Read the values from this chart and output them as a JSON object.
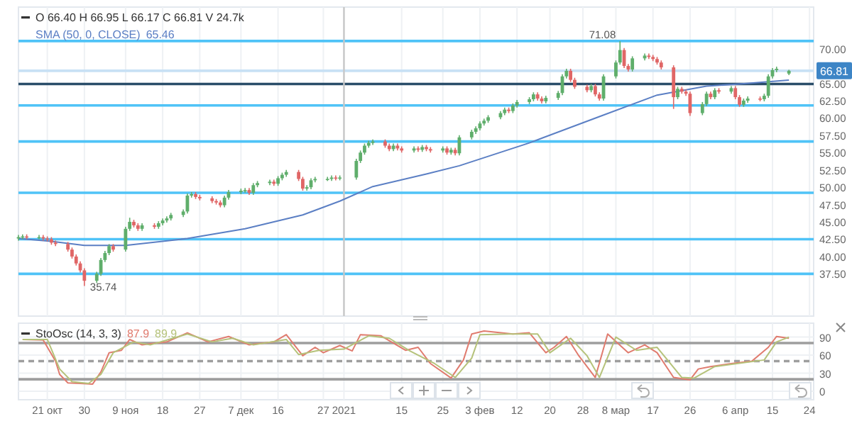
{
  "chart_data": [
    {
      "type": "candlestick",
      "title": "O 66.40 H 66.95 L 66.17 C 66.81 V 24.7k",
      "colors": [
        "#5fae6b",
        "#5fae6b",
        "#e06666",
        "#5fae6b",
        "#e06666",
        "#e06666",
        "#e06666",
        "#e06666",
        "#e06666",
        "#e06666",
        "#e06666",
        "#e06666",
        "#e06666",
        "#5fae6b",
        "#5fae6b",
        "#5fae6b",
        "#5fae6b",
        "#e06666",
        "#5fae6b",
        "#5fae6b",
        "#e06666",
        "#e06666",
        "#5fae6b",
        "#e06666",
        "#5fae6b",
        "#5fae6b",
        "#5fae6b",
        "#5fae6b",
        "#5fae6b",
        "#5fae6b",
        "#5fae6b",
        "#e06666",
        "#e06666",
        "#e06666",
        "#e06666",
        "#e06666",
        "#5fae6b",
        "#5fae6b",
        "#5fae6b",
        "#5fae6b",
        "#e06666",
        "#5fae6b",
        "#5fae6b",
        "#5fae6b",
        "#e06666",
        "#5fae6b",
        "#5fae6b",
        "#5fae6b",
        "#e06666",
        "#e06666",
        "#5fae6b",
        "#5fae6b",
        "#5fae6b",
        "#5fae6b",
        "#5fae6b",
        "#e06666",
        "#5fae6b",
        "#5fae6b",
        "#5fae6b",
        "#5fae6b",
        "#5fae6b",
        "#5fae6b",
        "#e06666",
        "#e06666",
        "#5fae6b",
        "#e06666",
        "#e06666",
        "#5fae6b",
        "#e06666",
        "#5fae6b",
        "#e06666",
        "#e06666",
        "#5fae6b",
        "#e06666",
        "#5fae6b",
        "#e06666",
        "#5fae6b",
        "#5fae6b",
        "#5fae6b",
        "#5fae6b",
        "#5fae6b",
        "#5fae6b",
        "#5fae6b",
        "#5fae6b",
        "#e06666",
        "#5fae6b",
        "#5fae6b",
        "#5fae6b",
        "#5fae6b",
        "#e06666",
        "#e06666",
        "#5fae6b",
        "#5fae6b",
        "#5fae6b",
        "#5fae6b",
        "#e06666",
        "#e06666",
        "#e06666",
        "#5fae6b",
        "#e06666",
        "#e06666",
        "#5fae6b",
        "#5fae6b",
        "#5fae6b",
        "#e06666",
        "#e06666",
        "#5fae6b",
        "#5fae6b",
        "#e06666",
        "#e06666",
        "#e06666",
        "#e06666",
        "#e06666",
        "#5fae6b",
        "#e06666",
        "#e06666",
        "#e06666",
        "#5fae6b",
        "#5fae6b",
        "#e06666",
        "#5fae6b",
        "#e06666",
        "#5fae6b",
        "#e06666",
        "#e06666",
        "#5fae6b",
        "#5fae6b",
        "#e06666",
        "#5fae6b",
        "#5fae6b",
        "#5fae6b",
        "#5fae6b",
        "#5fae6b"
      ],
      "x": [
        "2020-10-14",
        "2020-10-15",
        "2020-10-16",
        "2020-10-19",
        "2020-10-20",
        "2020-10-21",
        "2020-10-22",
        "2020-10-23",
        "2020-10-26",
        "2020-10-27",
        "2020-10-28",
        "2020-10-29",
        "2020-10-30",
        "2020-11-02",
        "2020-11-03",
        "2020-11-04",
        "2020-11-05",
        "2020-11-06",
        "2020-11-09",
        "2020-11-10",
        "2020-11-11",
        "2020-11-12",
        "2020-11-13",
        "2020-11-16",
        "2020-11-17",
        "2020-11-18",
        "2020-11-19",
        "2020-11-20",
        "2020-11-23",
        "2020-11-24",
        "2020-11-25",
        "2020-11-26",
        "2020-11-27",
        "2020-11-30",
        "2020-12-01",
        "2020-12-02",
        "2020-12-03",
        "2020-12-04",
        "2020-12-07",
        "2020-12-08",
        "2020-12-09",
        "2020-12-10",
        "2020-12-11",
        "2020-12-14",
        "2020-12-15",
        "2020-12-16",
        "2020-12-17",
        "2020-12-18",
        "2020-12-21",
        "2020-12-22",
        "2020-12-23",
        "2020-12-24",
        "2020-12-25",
        "2020-12-28",
        "2020-12-29",
        "2020-12-30",
        "2020-12-31",
        "2021-01-04",
        "2021-01-05",
        "2021-01-06",
        "2021-01-07",
        "2021-01-08",
        "2021-01-11",
        "2021-01-12",
        "2021-01-13",
        "2021-01-14",
        "2021-01-15",
        "2021-01-18",
        "2021-01-19",
        "2021-01-20",
        "2021-01-21",
        "2021-01-22",
        "2021-01-25",
        "2021-01-26",
        "2021-01-27",
        "2021-01-28",
        "2021-01-29",
        "2021-02-01",
        "2021-02-02",
        "2021-02-03",
        "2021-02-04",
        "2021-02-05",
        "2021-02-08",
        "2021-02-09",
        "2021-02-10",
        "2021-02-11",
        "2021-02-12",
        "2021-02-15",
        "2021-02-16",
        "2021-02-17",
        "2021-02-18",
        "2021-02-19",
        "2021-02-22",
        "2021-02-23",
        "2021-02-24",
        "2021-02-25",
        "2021-02-26",
        "2021-03-01",
        "2021-03-02",
        "2021-03-03",
        "2021-03-04",
        "2021-03-05",
        "2021-03-08",
        "2021-03-09",
        "2021-03-10",
        "2021-03-11",
        "2021-03-12",
        "2021-03-15",
        "2021-03-16",
        "2021-03-17",
        "2021-03-18",
        "2021-03-19",
        "2021-03-22",
        "2021-03-23",
        "2021-03-24",
        "2021-03-25",
        "2021-03-26",
        "2021-03-29",
        "2021-03-30",
        "2021-03-31",
        "2021-04-01",
        "2021-04-02",
        "2021-04-05",
        "2021-04-06",
        "2021-04-07",
        "2021-04-08",
        "2021-04-09",
        "2021-04-12",
        "2021-04-13",
        "2021-04-14",
        "2021-04-15",
        "2021-04-16",
        "2021-04-19"
      ],
      "ohlc": [
        [
          42.6,
          43.1,
          42.3,
          42.8
        ],
        [
          42.8,
          43.2,
          42.5,
          42.9
        ],
        [
          42.9,
          43.2,
          42.5,
          42.8
        ],
        [
          42.8,
          43.1,
          42.5,
          42.8
        ],
        [
          42.8,
          43.1,
          42.3,
          42.6
        ],
        [
          42.6,
          42.9,
          42.2,
          42.5
        ],
        [
          42.5,
          42.8,
          41.7,
          42.0
        ],
        [
          42.0,
          42.3,
          41.5,
          41.8
        ],
        [
          41.8,
          42.1,
          40.7,
          41.0
        ],
        [
          41.0,
          41.3,
          39.7,
          40.0
        ],
        [
          40.0,
          40.3,
          38.7,
          39.0
        ],
        [
          39.0,
          39.3,
          37.7,
          38.0
        ],
        [
          38.0,
          38.3,
          35.74,
          36.5
        ],
        [
          36.5,
          37.8,
          36.2,
          37.5
        ],
        [
          37.5,
          39.8,
          37.2,
          39.5
        ],
        [
          39.5,
          40.8,
          39.2,
          40.5
        ],
        [
          40.5,
          41.8,
          40.2,
          41.5
        ],
        [
          41.5,
          41.8,
          40.7,
          41.0
        ],
        [
          41.0,
          44.3,
          40.7,
          44.0
        ],
        [
          44.0,
          45.6,
          43.7,
          45.0
        ],
        [
          45.0,
          45.3,
          44.2,
          44.5
        ],
        [
          44.5,
          44.8,
          43.7,
          44.0
        ],
        [
          44.0,
          44.8,
          43.7,
          44.5
        ],
        [
          44.5,
          44.8,
          44.0,
          44.3
        ],
        [
          44.3,
          45.1,
          44.0,
          44.8
        ],
        [
          44.8,
          45.5,
          44.5,
          45.2
        ],
        [
          45.2,
          45.8,
          44.9,
          45.5
        ],
        [
          45.5,
          46.3,
          45.2,
          46.0
        ],
        [
          46.0,
          46.8,
          45.7,
          46.5
        ],
        [
          46.5,
          49.1,
          46.2,
          48.8
        ],
        [
          48.8,
          49.3,
          48.5,
          49.0
        ],
        [
          49.0,
          49.3,
          48.3,
          48.6
        ],
        [
          48.6,
          48.9,
          48.1,
          48.4
        ],
        [
          48.4,
          48.7,
          47.7,
          48.0
        ],
        [
          48.0,
          48.3,
          47.5,
          47.8
        ],
        [
          47.8,
          48.1,
          47.1,
          47.4
        ],
        [
          47.4,
          48.8,
          47.1,
          48.5
        ],
        [
          48.5,
          49.6,
          48.2,
          49.3
        ],
        [
          49.3,
          49.8,
          49.0,
          49.5
        ],
        [
          49.5,
          49.9,
          49.2,
          49.6
        ],
        [
          49.6,
          49.9,
          48.9,
          49.2
        ],
        [
          49.2,
          50.6,
          48.9,
          50.3
        ],
        [
          50.3,
          50.9,
          50.0,
          50.6
        ],
        [
          50.6,
          51.1,
          50.3,
          50.8
        ],
        [
          50.8,
          51.1,
          50.2,
          50.5
        ],
        [
          50.5,
          51.6,
          50.2,
          51.3
        ],
        [
          51.3,
          52.1,
          51.0,
          51.8
        ],
        [
          51.8,
          52.5,
          51.5,
          52.2
        ],
        [
          52.2,
          52.5,
          50.9,
          51.2
        ],
        [
          51.2,
          51.5,
          49.5,
          49.8
        ],
        [
          49.8,
          50.3,
          49.5,
          50.0
        ],
        [
          50.0,
          51.3,
          49.7,
          51.0
        ],
        [
          51.0,
          51.5,
          50.7,
          51.2
        ],
        [
          51.2,
          51.5,
          50.9,
          51.2
        ],
        [
          51.2,
          51.7,
          50.9,
          51.4
        ],
        [
          51.4,
          51.7,
          51.0,
          51.3
        ],
        [
          51.3,
          51.7,
          51.0,
          51.4
        ],
        [
          51.4,
          54.1,
          51.1,
          53.8
        ],
        [
          53.8,
          55.3,
          53.5,
          55.0
        ],
        [
          55.0,
          56.3,
          54.7,
          56.0
        ],
        [
          56.0,
          56.7,
          55.7,
          56.4
        ],
        [
          56.4,
          56.9,
          56.1,
          56.6
        ],
        [
          56.6,
          56.9,
          55.7,
          56.0
        ],
        [
          56.0,
          56.3,
          55.2,
          55.5
        ],
        [
          55.5,
          56.3,
          55.2,
          56.0
        ],
        [
          56.0,
          56.3,
          55.3,
          55.6
        ],
        [
          55.6,
          55.9,
          55.0,
          55.3
        ],
        [
          55.3,
          55.9,
          55.0,
          55.6
        ],
        [
          55.6,
          55.9,
          55.1,
          55.4
        ],
        [
          55.4,
          56.1,
          55.1,
          55.8
        ],
        [
          55.8,
          56.1,
          55.2,
          55.5
        ],
        [
          55.5,
          55.8,
          55.0,
          55.3
        ],
        [
          55.3,
          55.9,
          55.0,
          55.6
        ],
        [
          55.6,
          55.9,
          54.7,
          55.0
        ],
        [
          55.0,
          55.7,
          54.7,
          55.4
        ],
        [
          55.4,
          55.7,
          54.6,
          54.9
        ],
        [
          54.9,
          57.5,
          54.6,
          57.2
        ],
        [
          57.2,
          58.3,
          56.9,
          58.0
        ],
        [
          58.0,
          58.8,
          57.7,
          58.5
        ],
        [
          58.5,
          59.5,
          58.2,
          59.2
        ],
        [
          59.2,
          59.9,
          58.9,
          59.6
        ],
        [
          59.6,
          60.4,
          59.3,
          60.1
        ],
        [
          60.1,
          61.0,
          59.8,
          60.7
        ],
        [
          60.7,
          61.5,
          60.4,
          61.2
        ],
        [
          61.2,
          61.5,
          60.7,
          61.0
        ],
        [
          61.0,
          62.1,
          60.7,
          61.8
        ],
        [
          61.8,
          62.6,
          61.5,
          62.3
        ],
        [
          62.3,
          63.0,
          62.0,
          62.7
        ],
        [
          62.7,
          63.7,
          62.4,
          63.4
        ],
        [
          63.4,
          63.7,
          62.5,
          62.8
        ],
        [
          62.8,
          63.1,
          62.1,
          62.4
        ],
        [
          62.4,
          63.2,
          62.1,
          62.9
        ],
        [
          62.9,
          63.9,
          62.6,
          63.6
        ],
        [
          63.6,
          66.3,
          63.3,
          66.0
        ],
        [
          66.0,
          67.1,
          65.7,
          66.8
        ],
        [
          66.8,
          67.1,
          65.2,
          65.5
        ],
        [
          65.5,
          65.8,
          64.2,
          64.5
        ],
        [
          64.5,
          64.8,
          63.7,
          64.0
        ],
        [
          64.0,
          64.9,
          63.7,
          64.6
        ],
        [
          64.6,
          64.9,
          63.1,
          63.4
        ],
        [
          63.4,
          63.7,
          62.5,
          62.8
        ],
        [
          62.8,
          66.3,
          62.5,
          66.0
        ],
        [
          66.0,
          68.3,
          65.7,
          68.0
        ],
        [
          68.0,
          71.08,
          67.7,
          69.8
        ],
        [
          69.8,
          70.1,
          67.2,
          67.5
        ],
        [
          67.5,
          67.8,
          66.7,
          67.0
        ],
        [
          67.0,
          68.9,
          66.7,
          68.6
        ],
        [
          68.6,
          69.3,
          68.3,
          69.0
        ],
        [
          69.0,
          69.3,
          68.5,
          68.8
        ],
        [
          68.8,
          69.1,
          68.2,
          68.5
        ],
        [
          68.5,
          68.8,
          67.7,
          68.0
        ],
        [
          68.0,
          68.3,
          67.0,
          67.3
        ],
        [
          67.3,
          67.6,
          61.3,
          63.0
        ],
        [
          63.0,
          64.5,
          62.7,
          64.2
        ],
        [
          64.2,
          64.5,
          63.5,
          63.8
        ],
        [
          63.8,
          64.1,
          63.2,
          63.5
        ],
        [
          63.5,
          63.8,
          60.3,
          60.7
        ],
        [
          60.7,
          62.3,
          60.4,
          62.0
        ],
        [
          62.0,
          63.8,
          61.7,
          63.5
        ],
        [
          63.5,
          63.8,
          62.7,
          63.0
        ],
        [
          63.0,
          64.3,
          62.7,
          64.0
        ],
        [
          64.0,
          64.3,
          63.5,
          63.8
        ],
        [
          63.8,
          64.6,
          63.5,
          64.3
        ],
        [
          64.3,
          64.6,
          62.7,
          63.0
        ],
        [
          63.0,
          63.3,
          61.6,
          61.9
        ],
        [
          61.9,
          62.8,
          61.6,
          62.5
        ],
        [
          62.5,
          63.1,
          62.2,
          62.8
        ],
        [
          62.8,
          63.1,
          62.4,
          62.7
        ],
        [
          62.7,
          63.5,
          62.4,
          63.2
        ],
        [
          63.2,
          66.3,
          62.9,
          66.0
        ],
        [
          66.0,
          67.2,
          65.7,
          66.9
        ],
        [
          66.9,
          67.4,
          66.6,
          67.1
        ],
        [
          66.4,
          66.95,
          66.17,
          66.81
        ]
      ],
      "series": [
        {
          "name": "SMA (50, 0, CLOSE)",
          "type": "line",
          "color": "#5b7fc4",
          "x": [
            "2020-10-14",
            "2020-10-22",
            "2020-10-30",
            "2020-11-09",
            "2020-11-24",
            "2020-12-08",
            "2020-12-22",
            "2020-12-31",
            "2021-01-08",
            "2021-01-21",
            "2021-01-29",
            "2021-02-15",
            "2021-03-04",
            "2021-03-18",
            "2021-03-30",
            "2021-04-07",
            "2021-04-19"
          ],
          "values": [
            42.6,
            42.2,
            41.6,
            41.6,
            42.6,
            44.0,
            46.0,
            48.0,
            50.1,
            51.9,
            53.1,
            56.4,
            60.2,
            63.3,
            64.6,
            64.9,
            65.46
          ]
        }
      ],
      "annotations": [
        "65.46",
        {
          "text": "71.08",
          "x": "2021-03-09",
          "y": 71.08
        },
        {
          "text": "35.74",
          "x": "2020-10-30",
          "y": 35.74
        }
      ],
      "xlim": [
        "2020-10-14",
        "2021-04-25"
      ],
      "ylim": [
        31.4,
        76
      ],
      "xticks": [
        {
          "value": "2020-10-21",
          "label": null
        },
        {
          "value": "2020-10-30",
          "label": null
        },
        {
          "value": "2020-11-09",
          "label": null
        },
        {
          "value": "2020-11-18",
          "label": null
        },
        {
          "value": "2020-11-27",
          "label": null
        },
        {
          "value": "2020-12-07",
          "label": null
        },
        {
          "value": "2020-12-16",
          "label": null
        },
        {
          "value": "2020-12-27",
          "label": null
        },
        {
          "value": "2021-01-01",
          "label": null
        },
        {
          "value": "2021-01-15",
          "label": null
        },
        {
          "value": "2021-01-25",
          "label": null
        },
        {
          "value": "2021-02-03",
          "label": null
        },
        {
          "value": "2021-02-12",
          "label": null
        },
        {
          "value": "2021-02-20",
          "label": null
        },
        {
          "value": "2021-02-28",
          "label": null
        },
        {
          "value": "2021-03-08",
          "label": null
        },
        {
          "value": "2021-03-17",
          "label": null
        },
        {
          "value": "2021-03-26",
          "label": null
        },
        {
          "value": "2021-04-06",
          "label": null
        },
        {
          "value": "2021-04-15",
          "label": null
        },
        {
          "value": "2021-04-24",
          "label": null
        }
      ],
      "yticks": [
        {
          "value": 37.5,
          "label": "37.50"
        },
        {
          "value": 40,
          "label": "40.00"
        },
        {
          "value": 42.5,
          "label": "42.50"
        },
        {
          "value": 45,
          "label": "45.00"
        },
        {
          "value": 47.5,
          "label": "47.50"
        },
        {
          "value": 50,
          "label": "50.00"
        },
        {
          "value": 52.5,
          "label": "52.50"
        },
        {
          "value": 55,
          "label": "55.00"
        },
        {
          "value": 57.5,
          "label": "57.50"
        },
        {
          "value": 60,
          "label": "60.00"
        },
        {
          "value": 62.5,
          "label": "62.50"
        },
        {
          "value": 65,
          "label": "65.00"
        },
        {
          "value": 70,
          "label": "70.00"
        }
      ],
      "tick_labels": "y",
      "grid": "x",
      "ref_lines": [
        {
          "axis": "y",
          "value": 71.1,
          "color": "#4fc3f7"
        },
        {
          "axis": "y",
          "value": 66.81,
          "label": "66.81",
          "color": "#c8e1f5"
        },
        {
          "axis": "y",
          "value": 64.9,
          "color": "#2a4d69"
        },
        {
          "axis": "y",
          "value": 61.8,
          "color": "#4fc3f7"
        },
        {
          "axis": "y",
          "value": 56.6,
          "color": "#4fc3f7"
        },
        {
          "axis": "y",
          "value": 49.2,
          "color": "#4fc3f7"
        },
        {
          "axis": "y",
          "value": 42.5,
          "color": "#4fc3f7"
        },
        {
          "axis": "y",
          "value": 37.5,
          "color": "#4fc3f7"
        },
        {
          "axis": "x",
          "value": "2021-01-01",
          "color": "#c8c8c8"
        }
      ]
    },
    {
      "type": "line",
      "title": "StoOsc (14, 3, 3)",
      "series": [
        {
          "color": "#e07b6e",
          "x": [
            "2020-10-15",
            "2020-10-20",
            "2020-10-23",
            "2020-10-24",
            "2020-10-26",
            "2020-10-29",
            "2020-11-01",
            "2020-11-03",
            "2020-11-05",
            "2020-11-08",
            "2020-11-10",
            "2020-11-13",
            "2020-11-19",
            "2020-11-24",
            "2020-11-29",
            "2020-12-04",
            "2020-12-09",
            "2020-12-15",
            "2020-12-18",
            "2020-12-22",
            "2020-12-25",
            "2020-12-27",
            "2020-12-31",
            "2021-01-03",
            "2021-01-05",
            "2021-01-10",
            "2021-01-16",
            "2021-01-19",
            "2021-01-22",
            "2021-01-27",
            "2021-01-30",
            "2021-02-01",
            "2021-02-04",
            "2021-02-11",
            "2021-02-15",
            "2021-02-19",
            "2021-02-21",
            "2021-02-24",
            "2021-02-27",
            "2021-03-03",
            "2021-03-06",
            "2021-03-11",
            "2021-03-15",
            "2021-03-18",
            "2021-03-22",
            "2021-03-26",
            "2021-03-28",
            "2021-03-31",
            "2021-04-05",
            "2021-04-10",
            "2021-04-14",
            "2021-04-16",
            "2021-04-19"
          ],
          "values": [
            86,
            85,
            50,
            28,
            14,
            13,
            12,
            32,
            64,
            68,
            86,
            77,
            82,
            97,
            82,
            91,
            77,
            82,
            94,
            59,
            73,
            64,
            76,
            67,
            94,
            92,
            68,
            73,
            46,
            22,
            52,
            95,
            100,
            95,
            97,
            64,
            73,
            91,
            59,
            23,
            95,
            64,
            77,
            64,
            23,
            19,
            37,
            41,
            46,
            50,
            73,
            91,
            87.9
          ]
        },
        {
          "color": "#b5c27a",
          "x": [
            "2020-10-15",
            "2020-10-21",
            "2020-10-24",
            "2020-10-27",
            "2020-10-31",
            "2020-11-03",
            "2020-11-06",
            "2020-11-11",
            "2020-11-15",
            "2020-11-24",
            "2020-11-30",
            "2020-12-05",
            "2020-12-10",
            "2020-12-18",
            "2020-12-21",
            "2020-12-26",
            "2021-01-01",
            "2021-01-07",
            "2021-01-12",
            "2021-01-17",
            "2021-01-23",
            "2021-01-28",
            "2021-02-01",
            "2021-02-03",
            "2021-02-10",
            "2021-02-17",
            "2021-02-20",
            "2021-02-25",
            "2021-03-01",
            "2021-03-04",
            "2021-03-08",
            "2021-03-13",
            "2021-03-18",
            "2021-03-24",
            "2021-03-27",
            "2021-04-01",
            "2021-04-13",
            "2021-04-16",
            "2021-04-19"
          ],
          "values": [
            86,
            86,
            37,
            16,
            13,
            28,
            64,
            82,
            77,
            95,
            82,
            88,
            77,
            86,
            61,
            68,
            70,
            92,
            88,
            67,
            46,
            23,
            55,
            94,
            95,
            95,
            64,
            88,
            59,
            23,
            90,
            68,
            73,
            23,
            22,
            41,
            52,
            82,
            89.9
          ]
        }
      ],
      "annotations": [
        "87.9",
        "89.9"
      ],
      "xlim": [
        "2020-10-14",
        "2021-04-25"
      ],
      "ylim": [
        -14,
        113
      ],
      "xticks": [
        {
          "value": "2020-10-21",
          "label": "21 окт"
        },
        {
          "value": "2020-10-30",
          "label": "30"
        },
        {
          "value": "2020-11-09",
          "label": "9 ноя"
        },
        {
          "value": "2020-11-18",
          "label": "18"
        },
        {
          "value": "2020-11-27",
          "label": "27"
        },
        {
          "value": "2020-12-07",
          "label": "7 дек"
        },
        {
          "value": "2020-12-16",
          "label": "16"
        },
        {
          "value": "2020-12-27",
          "label": "27"
        },
        {
          "value": "2021-01-01",
          "label": "2021"
        },
        {
          "value": "2021-01-15",
          "label": "15"
        },
        {
          "value": "2021-01-25",
          "label": "25"
        },
        {
          "value": "2021-02-03",
          "label": "3 фев"
        },
        {
          "value": "2021-02-12",
          "label": "12"
        },
        {
          "value": "2021-02-20",
          "label": "20"
        },
        {
          "value": "2021-02-28",
          "label": "28"
        },
        {
          "value": "2021-03-08",
          "label": "8 мар"
        },
        {
          "value": "2021-03-17",
          "label": "17"
        },
        {
          "value": "2021-03-26",
          "label": "26"
        },
        {
          "value": "2021-04-06",
          "label": "6 апр"
        },
        {
          "value": "2021-04-15",
          "label": "15"
        },
        {
          "value": "2021-04-24",
          "label": "24"
        }
      ],
      "yticks": [
        0,
        30,
        60,
        90
      ],
      "grid": true,
      "ref_lines": [
        {
          "axis": "y",
          "value": 80,
          "color": "#9e9e9e"
        },
        {
          "axis": "y",
          "value": 50,
          "color": "#9e9e9e",
          "line_style": "dashed"
        },
        {
          "axis": "y",
          "value": 20,
          "color": "#9e9e9e"
        }
      ]
    }
  ]
}
